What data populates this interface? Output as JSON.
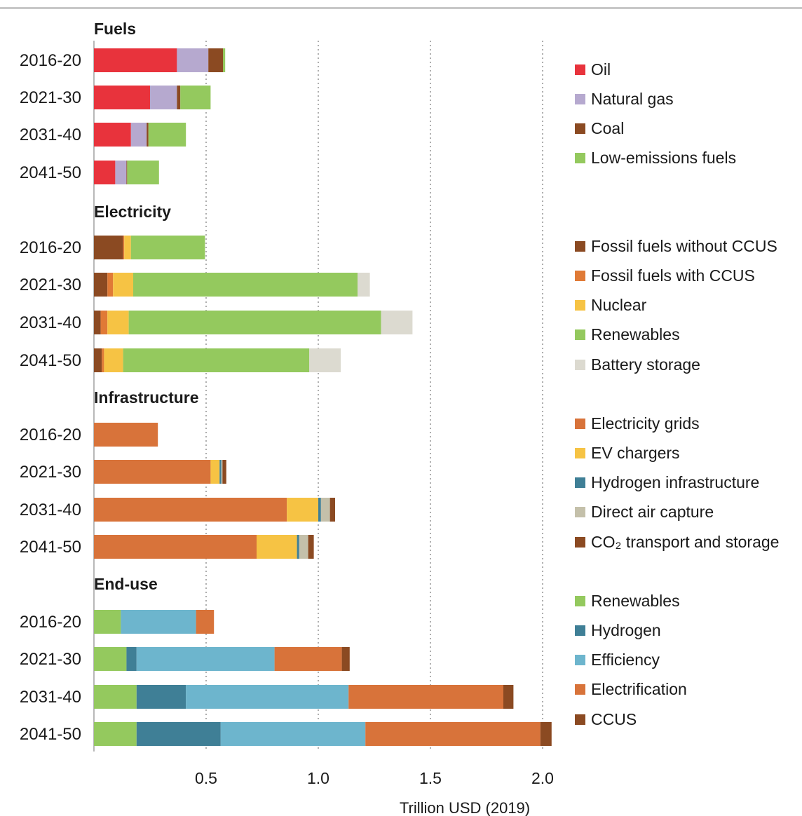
{
  "chart_data": {
    "type": "bar",
    "orientation": "horizontal",
    "stacked": true,
    "xlabel": "Trillion USD (2019)",
    "xlim": [
      0,
      2.05
    ],
    "xticks": [
      0.5,
      1.0,
      1.5,
      2.0
    ],
    "xtick_labels": [
      "0.5",
      "1.0",
      "1.5",
      "2.0"
    ],
    "grid": "vertical dotted",
    "legend_position": "right",
    "categories": [
      "2016-20",
      "2021-30",
      "2031-40",
      "2041-50"
    ],
    "panels": [
      {
        "title": "Fuels",
        "series": [
          {
            "name": "Oil",
            "color": "#e8333c",
            "values": [
              0.37,
              0.25,
              0.165,
              0.095
            ]
          },
          {
            "name": "Natural gas",
            "color": "#b6a9cf",
            "values": [
              0.14,
              0.12,
              0.07,
              0.05
            ]
          },
          {
            "name": "Coal",
            "color": "#8b4a22",
            "values": [
              0.065,
              0.015,
              0.008,
              0.003
            ]
          },
          {
            "name": "Low-emissions fuels",
            "color": "#94c95e",
            "values": [
              0.01,
              0.135,
              0.167,
              0.142
            ]
          }
        ]
      },
      {
        "title": "Electricity",
        "series": [
          {
            "name": "Fossil fuels without CCUS",
            "color": "#8b4a22",
            "values": [
              0.13,
              0.06,
              0.03,
              0.035
            ]
          },
          {
            "name": "Fossil fuels with CCUS",
            "color": "#e07a36",
            "values": [
              0.005,
              0.025,
              0.03,
              0.01
            ]
          },
          {
            "name": "Nuclear",
            "color": "#f6c344",
            "values": [
              0.03,
              0.09,
              0.095,
              0.085
            ]
          },
          {
            "name": "Renewables",
            "color": "#94c95e",
            "values": [
              0.33,
              1.0,
              1.125,
              0.83
            ]
          },
          {
            "name": "Battery storage",
            "color": "#dcdad0",
            "values": [
              0.0,
              0.055,
              0.14,
              0.14
            ]
          }
        ]
      },
      {
        "title": "Infrastructure",
        "series": [
          {
            "name": "Electricity grids",
            "color": "#d8733a",
            "values": [
              0.285,
              0.52,
              0.86,
              0.725
            ]
          },
          {
            "name": "EV chargers",
            "color": "#f6c344",
            "values": [
              0.0,
              0.04,
              0.14,
              0.18
            ]
          },
          {
            "name": "Hydrogen infrastructure",
            "color": "#3f7f96",
            "values": [
              0.0,
              0.008,
              0.012,
              0.01
            ]
          },
          {
            "name": "Direct air capture",
            "color": "#c4c0aa",
            "values": [
              0.0,
              0.005,
              0.04,
              0.04
            ]
          },
          {
            "name": "CO₂ transport and storage",
            "color": "#8b4a22",
            "values": [
              0.0,
              0.017,
              0.023,
              0.025
            ]
          }
        ]
      },
      {
        "title": "End-use",
        "series": [
          {
            "name": "Renewables",
            "color": "#94c95e",
            "values": [
              0.12,
              0.145,
              0.19,
              0.19
            ]
          },
          {
            "name": "Hydrogen",
            "color": "#3f7f96",
            "values": [
              0.0,
              0.045,
              0.22,
              0.375
            ]
          },
          {
            "name": "Efficiency",
            "color": "#6db5cd",
            "values": [
              0.335,
              0.615,
              0.725,
              0.645
            ]
          },
          {
            "name": "Electrification",
            "color": "#d8733a",
            "values": [
              0.08,
              0.3,
              0.69,
              0.78
            ]
          },
          {
            "name": "CCUS",
            "color": "#8b4a22",
            "values": [
              0.0,
              0.035,
              0.045,
              0.05
            ]
          }
        ]
      }
    ]
  }
}
